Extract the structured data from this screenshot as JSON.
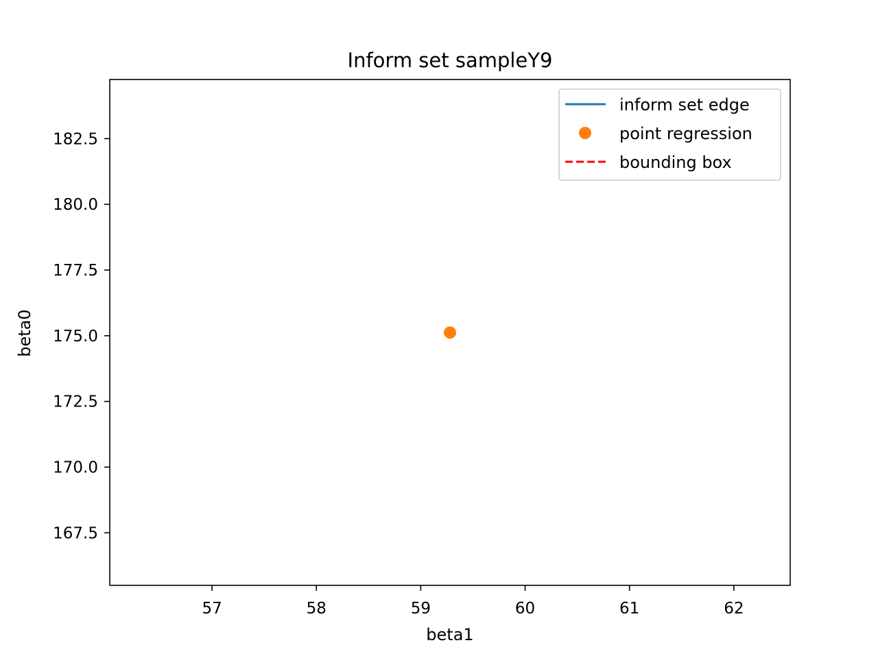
{
  "chart_data": {
    "type": "scatter",
    "title": "Inform set sampleY9",
    "xlabel": "beta1",
    "ylabel": "beta0",
    "xlim": [
      56.02,
      62.54
    ],
    "ylim": [
      165.5,
      184.75
    ],
    "xticks": [
      57,
      58,
      59,
      60,
      61,
      62
    ],
    "xtick_labels": [
      "57",
      "58",
      "59",
      "60",
      "61",
      "62"
    ],
    "yticks": [
      167.5,
      170.0,
      172.5,
      175.0,
      177.5,
      180.0,
      182.5
    ],
    "ytick_labels": [
      "167.5",
      "170.0",
      "172.5",
      "175.0",
      "177.5",
      "180.0",
      "182.5"
    ],
    "grid": false,
    "legend_position": "top-right",
    "series": [
      {
        "name": "inform set edge",
        "kind": "line",
        "color": "#1f77b4",
        "x": [],
        "y": []
      },
      {
        "name": "point regression",
        "kind": "marker",
        "color": "#ff7f0e",
        "x": [
          59.28
        ],
        "y": [
          175.12
        ]
      },
      {
        "name": "bounding box",
        "kind": "dashed-line",
        "color": "#ff0000",
        "x": [],
        "y": []
      }
    ]
  }
}
